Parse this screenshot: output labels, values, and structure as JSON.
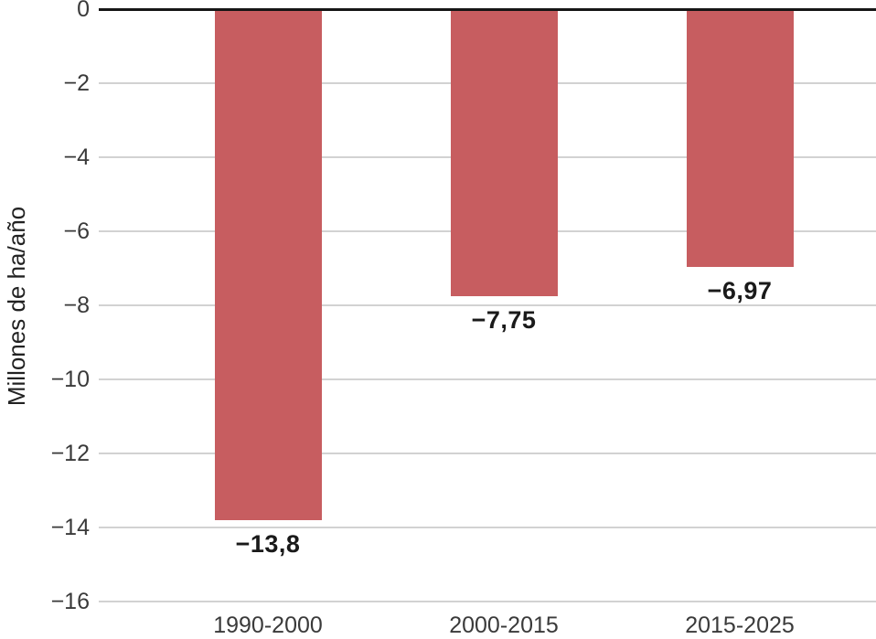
{
  "chart_data": {
    "type": "bar",
    "categories": [
      "1990-2000",
      "2000-2015",
      "2015-2025"
    ],
    "values": [
      -13.8,
      -7.75,
      -6.97
    ],
    "value_labels": [
      "−13,8",
      "−7,75",
      "−6,97"
    ],
    "xlabel": "",
    "ylabel": "Millones de ha/año",
    "ylim": [
      -16,
      0
    ],
    "yticks": [
      0,
      -2,
      -4,
      -6,
      -8,
      -10,
      -12,
      -14,
      -16
    ],
    "ytick_labels": [
      "0",
      "−2",
      "−4",
      "−6",
      "−8",
      "−10",
      "−12",
      "−14",
      "−16"
    ],
    "grid": true,
    "legend_position": "none",
    "colors": {
      "bar": "#c75d60",
      "zero_line": "#161616",
      "gridline": "#d2d2d2",
      "tick_text": "#3a3a3a",
      "axis_title_text": "#222222",
      "value_label_text": "#1a1a1a",
      "background": "#ffffff"
    }
  }
}
